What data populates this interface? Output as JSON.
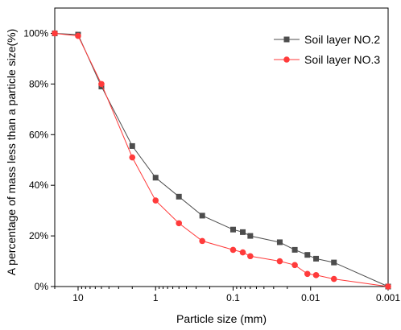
{
  "chart_data": {
    "type": "line",
    "xlabel": "Particle size (mm)",
    "ylabel": "A percentage of mass less than a particle size(%)",
    "x_scale": "log",
    "x_reversed": true,
    "xlim": [
      20,
      0.001
    ],
    "ylim": [
      0,
      110
    ],
    "x_ticks": [
      10,
      1,
      0.1,
      0.01,
      0.001
    ],
    "x_tick_labels": [
      "10",
      "1",
      "0.1",
      "0.01",
      "0.001"
    ],
    "y_ticks": [
      0,
      20,
      40,
      60,
      80,
      100
    ],
    "y_tick_labels": [
      "0%",
      "20%",
      "40%",
      "60%",
      "80%",
      "100%"
    ],
    "grid": false,
    "legend_position": "top-right",
    "series": [
      {
        "name": "Soil layer NO.2",
        "color": "#4d4d4d",
        "marker": "square",
        "x": [
          20,
          10,
          5,
          2,
          1,
          0.5,
          0.25,
          0.1,
          0.075,
          0.06,
          0.025,
          0.016,
          0.011,
          0.0085,
          0.005,
          0.001
        ],
        "y": [
          100,
          99.5,
          79,
          55.5,
          43,
          35.5,
          28,
          22.5,
          21.5,
          20,
          17.5,
          14.5,
          12.5,
          11,
          9.5,
          0
        ]
      },
      {
        "name": "Soil layer NO.3",
        "color": "#ff3b3b",
        "marker": "circle",
        "x": [
          20,
          10,
          5,
          2,
          1,
          0.5,
          0.25,
          0.1,
          0.075,
          0.06,
          0.025,
          0.016,
          0.011,
          0.0085,
          0.005,
          0.001
        ],
        "y": [
          100,
          99,
          80,
          51,
          34,
          25,
          18,
          14.5,
          13.5,
          12,
          10,
          8.5,
          5,
          4.5,
          3,
          0
        ]
      }
    ]
  }
}
